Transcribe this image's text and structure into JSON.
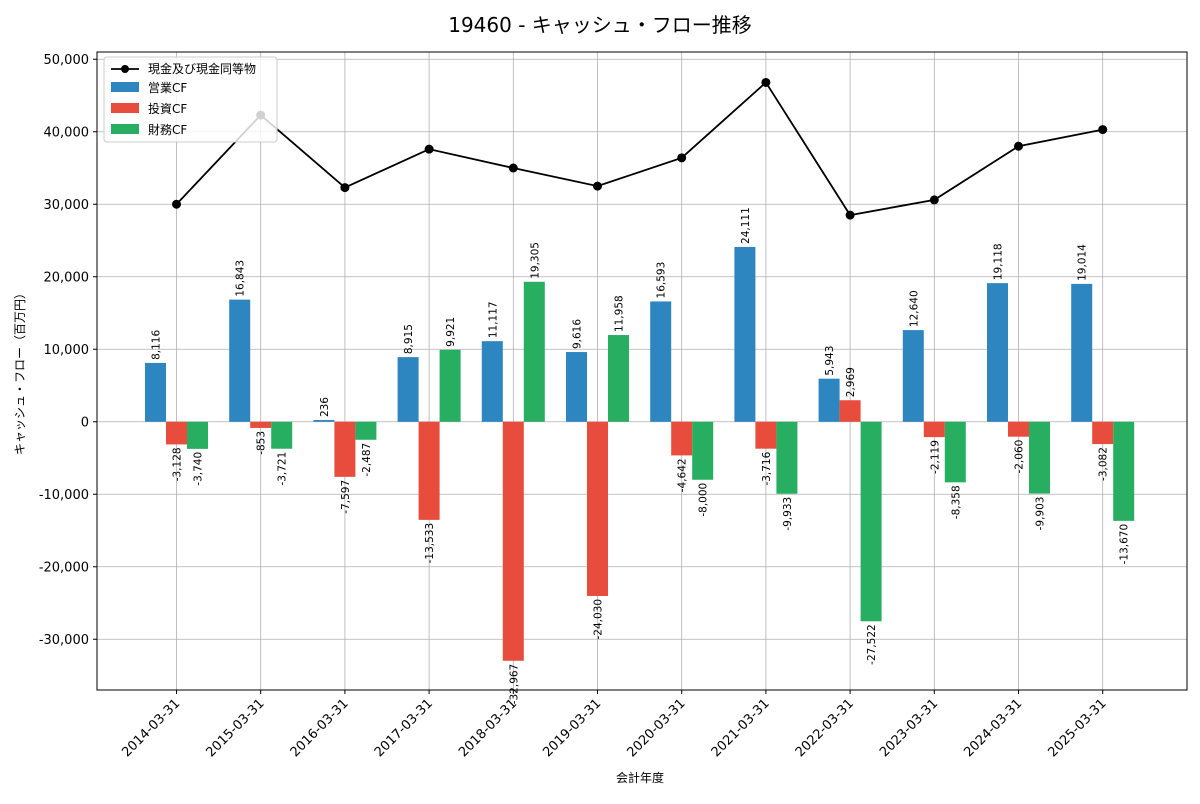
{
  "chart_data": {
    "type": "bar",
    "title": "19460 - キャッシュ・フロー推移",
    "xlabel": "会計年度",
    "ylabel": "キャッシュ・フロー（百万円）",
    "ylim": [
      -37000,
      51000
    ],
    "yticks": [
      -30000,
      -20000,
      -10000,
      0,
      10000,
      20000,
      30000,
      40000,
      50000
    ],
    "ytick_labels": [
      "-30,000",
      "-20,000",
      "-10,000",
      "0",
      "10,000",
      "20,000",
      "30,000",
      "40,000",
      "50,000"
    ],
    "grid": true,
    "legend_position": "top-left",
    "categories": [
      "2014-03-31",
      "2015-03-31",
      "2016-03-31",
      "2017-03-31",
      "2018-03-31",
      "2019-03-31",
      "2020-03-31",
      "2021-03-31",
      "2022-03-31",
      "2023-03-31",
      "2024-03-31",
      "2025-03-31"
    ],
    "series": [
      {
        "name": "営業CF",
        "color": "#2e86c1",
        "values": [
          8116,
          16843,
          236,
          8915,
          11117,
          9616,
          16593,
          24111,
          5943,
          12640,
          19118,
          19014
        ],
        "labels": [
          "8,116",
          "16,843",
          "236",
          "8,915",
          "11,117",
          "9,616",
          "16,593",
          "24,111",
          "5,943",
          "12,640",
          "19,118",
          "19,014"
        ]
      },
      {
        "name": "投資CF",
        "color": "#e74c3c",
        "values": [
          -3128,
          -853,
          -7597,
          -13533,
          -32967,
          -24030,
          -4642,
          -3716,
          2969,
          -2119,
          -2060,
          -3082
        ],
        "labels": [
          "-3,128",
          "-853",
          "-7,597",
          "-13,533",
          "-32,967",
          "-24,030",
          "-4,642",
          "-3,716",
          "2,969",
          "-2,119",
          "-2,060",
          "-3,082"
        ]
      },
      {
        "name": "財務CF",
        "color": "#27ae60",
        "values": [
          -3740,
          -3721,
          -2487,
          9921,
          19305,
          11958,
          -8000,
          -9933,
          -27522,
          -8358,
          -9903,
          -13670
        ],
        "labels": [
          "-3,740",
          "-3,721",
          "-2,487",
          "9,921",
          "19,305",
          "11,958",
          "-8,000",
          "-9,933",
          "-27,522",
          "-8,358",
          "-9,903",
          "-13,670"
        ]
      }
    ],
    "line_series": {
      "name": "現金及び現金同等物",
      "color": "#000000",
      "values": [
        30000,
        42300,
        32300,
        37600,
        35000,
        32500,
        36400,
        46800,
        28500,
        30600,
        38000,
        40300
      ]
    }
  }
}
